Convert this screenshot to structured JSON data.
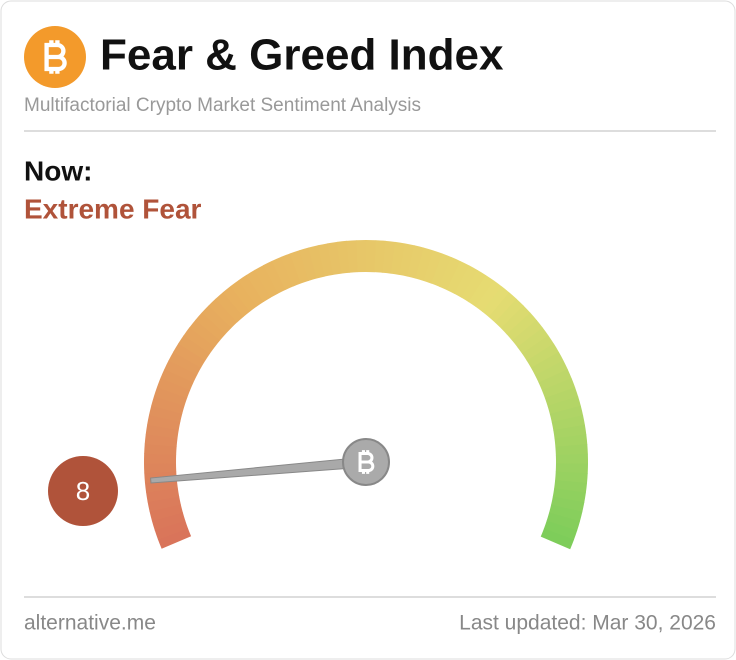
{
  "header": {
    "title": "Fear & Greed Index",
    "subtitle": "Multifactorial Crypto Market Sentiment Analysis"
  },
  "chart_data": {
    "type": "gauge",
    "label": "Now:",
    "classification": "Extreme Fear",
    "value": 8,
    "ylim": [
      0,
      100
    ],
    "colors": [
      "#d9735a",
      "#e8b15e",
      "#e6dc72",
      "#7ccd5a"
    ],
    "value_color": "#b0533a"
  },
  "footer": {
    "source": "alternative.me",
    "updated": "Last updated: Mar 30, 2026"
  }
}
